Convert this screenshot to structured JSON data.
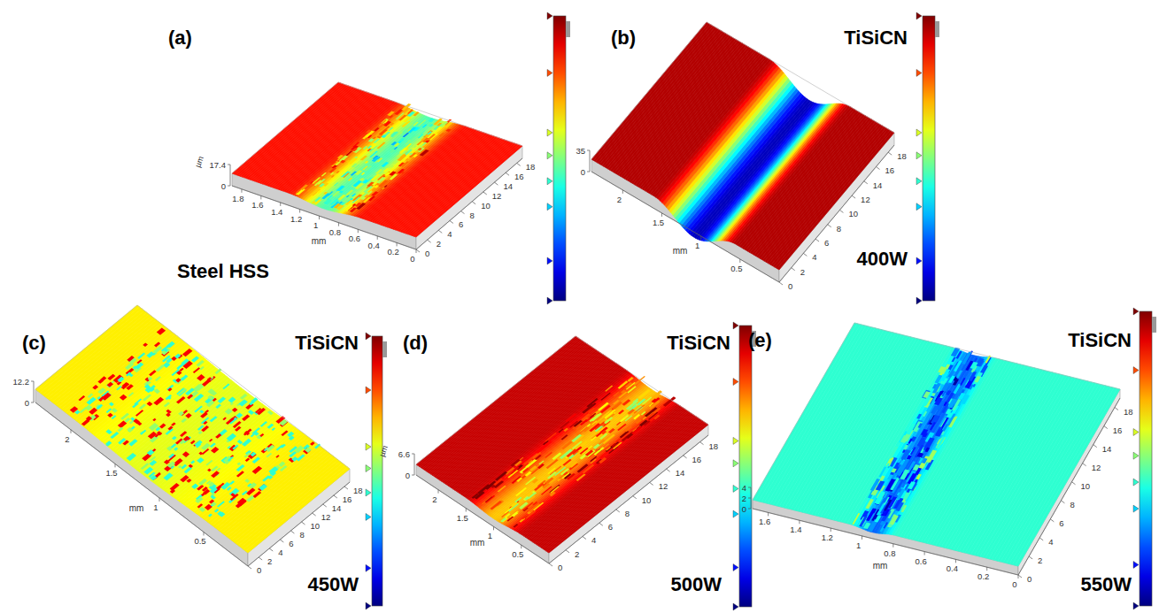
{
  "chart_data": [
    {
      "type": "surface",
      "title": "(a)",
      "annotations": [
        "Steel HSS"
      ],
      "x_label": "mm",
      "z_label": "µm",
      "xlim": [
        0,
        1.9
      ],
      "xticks": [
        0,
        0.2,
        0.4,
        0.6,
        0.8,
        1,
        1.2,
        1.4,
        1.6,
        1.8
      ],
      "ylim": [
        0,
        19
      ],
      "yticks": [
        0,
        2,
        4,
        6,
        8,
        10,
        12,
        14,
        16,
        18
      ],
      "zlim": [
        0,
        17.4
      ],
      "zticks": [
        0,
        17.4
      ]
    },
    {
      "type": "surface",
      "title": "(b)",
      "subtitle": "TiSiCN",
      "annotations": [
        "400W"
      ],
      "x_label": "mm",
      "xlim": [
        0,
        2.4
      ],
      "xticks": [
        0.5,
        1,
        1.5,
        2
      ],
      "ylim": [
        0,
        19
      ],
      "yticks": [
        0,
        2,
        4,
        6,
        8,
        10,
        12,
        14,
        16,
        18
      ],
      "zlim": [
        0,
        35
      ],
      "zticks": [
        0,
        35
      ]
    },
    {
      "type": "surface",
      "title": "(c)",
      "subtitle": "TiSiCN",
      "annotations": [
        "450W"
      ],
      "x_label": "mm",
      "xlim": [
        0,
        2.4
      ],
      "xticks": [
        0.5,
        1,
        1.5,
        2
      ],
      "ylim": [
        0,
        19
      ],
      "yticks": [
        0,
        2,
        4,
        6,
        8,
        10,
        12,
        14,
        16,
        18
      ],
      "zlim": [
        0,
        12.2
      ],
      "zticks": [
        0,
        12.2
      ]
    },
    {
      "type": "surface",
      "title": "(d)",
      "subtitle": "TiSiCN",
      "annotations": [
        "500W"
      ],
      "x_label": "mm",
      "z_label": "µm",
      "xlim": [
        0,
        2.4
      ],
      "xticks": [
        0.5,
        1,
        1.5,
        2
      ],
      "ylim": [
        0,
        19
      ],
      "yticks": [
        0,
        2,
        4,
        6,
        8,
        10,
        12,
        14,
        16,
        18
      ],
      "zlim": [
        0,
        6.6
      ],
      "zticks": [
        0,
        6.6
      ]
    },
    {
      "type": "surface",
      "title": "(e)",
      "subtitle": "TiSiCN",
      "annotations": [
        "550W"
      ],
      "x_label": "mm",
      "xlim": [
        0,
        1.7
      ],
      "xticks": [
        0,
        0.2,
        0.4,
        0.6,
        0.8,
        1,
        1.2,
        1.4,
        1.6
      ],
      "ylim": [
        0,
        19
      ],
      "yticks": [
        0,
        2,
        4,
        6,
        8,
        10,
        12,
        14,
        16,
        18
      ],
      "zlim": [
        0,
        4
      ],
      "zticks": [
        0,
        2,
        4
      ]
    }
  ]
}
